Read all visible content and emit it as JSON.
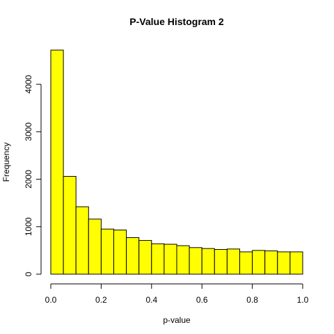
{
  "chart_data": {
    "type": "bar",
    "title": "P-Value Histogram 2",
    "xlabel": "p-value",
    "ylabel": "Frequency",
    "bar_color": "#ffff00",
    "bin_edges": [
      0.0,
      0.05,
      0.1,
      0.15,
      0.2,
      0.25,
      0.3,
      0.35,
      0.4,
      0.45,
      0.5,
      0.55,
      0.6,
      0.65,
      0.7,
      0.75,
      0.8,
      0.85,
      0.9,
      0.95,
      1.0
    ],
    "values": [
      4720,
      2060,
      1420,
      1160,
      950,
      930,
      770,
      710,
      640,
      630,
      600,
      560,
      540,
      520,
      530,
      470,
      500,
      490,
      470,
      470
    ],
    "xlim": [
      0,
      1
    ],
    "ylim": [
      0,
      4720
    ],
    "x_ticks": [
      {
        "value": 0.0,
        "label": "0.0"
      },
      {
        "value": 0.2,
        "label": "0.2"
      },
      {
        "value": 0.4,
        "label": "0.4"
      },
      {
        "value": 0.6,
        "label": "0.6"
      },
      {
        "value": 0.8,
        "label": "0.8"
      },
      {
        "value": 1.0,
        "label": "1.0"
      }
    ],
    "y_ticks": [
      {
        "value": 0,
        "label": "0"
      },
      {
        "value": 1000,
        "label": "1000"
      },
      {
        "value": 2000,
        "label": "2000"
      },
      {
        "value": 3000,
        "label": "3000"
      },
      {
        "value": 4000,
        "label": "4000"
      }
    ],
    "grid": false,
    "legend": "none"
  }
}
